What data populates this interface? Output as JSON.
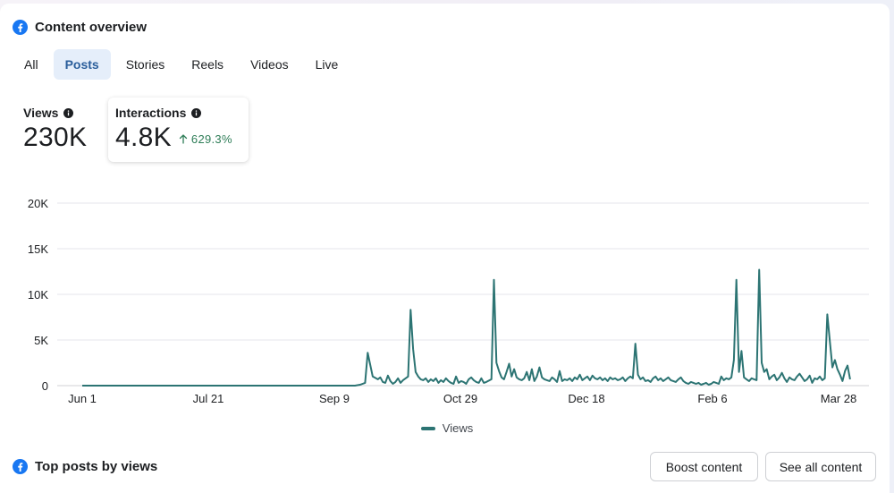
{
  "overview": {
    "title": "Content overview",
    "tabs": [
      {
        "label": "All",
        "active": false
      },
      {
        "label": "Posts",
        "active": true
      },
      {
        "label": "Stories",
        "active": false
      },
      {
        "label": "Reels",
        "active": false
      },
      {
        "label": "Videos",
        "active": false
      },
      {
        "label": "Live",
        "active": false
      }
    ],
    "metrics": {
      "views": {
        "label": "Views",
        "value": "230K"
      },
      "interactions": {
        "label": "Interactions",
        "value": "4.8K",
        "change": "629.3%",
        "change_direction": "up"
      }
    }
  },
  "chart_data": {
    "type": "line",
    "x_tick_labels": [
      "Jun 1",
      "Jul 21",
      "Sep 9",
      "Oct 29",
      "Dec 18",
      "Feb 6",
      "Mar 28"
    ],
    "y_tick_labels": [
      "0",
      "5K",
      "10K",
      "15K",
      "20K"
    ],
    "ylim": [
      0,
      20000
    ],
    "grid": true,
    "legend_position": "bottom",
    "series": [
      {
        "name": "Views",
        "color": "#2c7473",
        "x_range_days": [
          0,
          309
        ],
        "points": [
          [
            0,
            0
          ],
          [
            30,
            0
          ],
          [
            60,
            0
          ],
          [
            90,
            0
          ],
          [
            100,
            0
          ],
          [
            108,
            0
          ],
          [
            110,
            100
          ],
          [
            112,
            300
          ],
          [
            113,
            3600
          ],
          [
            115,
            1000
          ],
          [
            117,
            700
          ],
          [
            118,
            900
          ],
          [
            119,
            400
          ],
          [
            120,
            300
          ],
          [
            121,
            1100
          ],
          [
            122,
            500
          ],
          [
            123,
            200
          ],
          [
            124,
            400
          ],
          [
            125,
            800
          ],
          [
            126,
            300
          ],
          [
            127,
            600
          ],
          [
            129,
            1000
          ],
          [
            130,
            8300
          ],
          [
            131,
            4000
          ],
          [
            132,
            1500
          ],
          [
            133,
            1000
          ],
          [
            134,
            700
          ],
          [
            135,
            600
          ],
          [
            136,
            800
          ],
          [
            137,
            400
          ],
          [
            138,
            700
          ],
          [
            139,
            500
          ],
          [
            140,
            800
          ],
          [
            141,
            300
          ],
          [
            142,
            600
          ],
          [
            143,
            400
          ],
          [
            144,
            800
          ],
          [
            145,
            500
          ],
          [
            146,
            300
          ],
          [
            147,
            200
          ],
          [
            148,
            1000
          ],
          [
            149,
            300
          ],
          [
            150,
            500
          ],
          [
            151,
            400
          ],
          [
            152,
            200
          ],
          [
            153,
            700
          ],
          [
            154,
            900
          ],
          [
            155,
            600
          ],
          [
            156,
            400
          ],
          [
            157,
            300
          ],
          [
            158,
            800
          ],
          [
            159,
            300
          ],
          [
            160,
            400
          ],
          [
            162,
            700
          ],
          [
            163,
            11600
          ],
          [
            164,
            2500
          ],
          [
            165,
            1600
          ],
          [
            166,
            900
          ],
          [
            167,
            700
          ],
          [
            168,
            1500
          ],
          [
            169,
            2400
          ],
          [
            170,
            1000
          ],
          [
            171,
            1800
          ],
          [
            172,
            900
          ],
          [
            173,
            700
          ],
          [
            174,
            600
          ],
          [
            175,
            800
          ],
          [
            176,
            1500
          ],
          [
            177,
            600
          ],
          [
            178,
            1800
          ],
          [
            179,
            500
          ],
          [
            180,
            1000
          ],
          [
            181,
            2000
          ],
          [
            182,
            900
          ],
          [
            183,
            700
          ],
          [
            184,
            600
          ],
          [
            185,
            500
          ],
          [
            186,
            900
          ],
          [
            187,
            700
          ],
          [
            188,
            400
          ],
          [
            189,
            1600
          ],
          [
            190,
            500
          ],
          [
            191,
            700
          ],
          [
            192,
            600
          ],
          [
            193,
            800
          ],
          [
            194,
            500
          ],
          [
            195,
            900
          ],
          [
            196,
            700
          ],
          [
            197,
            1200
          ],
          [
            198,
            600
          ],
          [
            199,
            800
          ],
          [
            200,
            1000
          ],
          [
            201,
            600
          ],
          [
            202,
            1100
          ],
          [
            203,
            800
          ],
          [
            204,
            700
          ],
          [
            205,
            900
          ],
          [
            206,
            600
          ],
          [
            207,
            800
          ],
          [
            208,
            500
          ],
          [
            209,
            900
          ],
          [
            210,
            700
          ],
          [
            211,
            800
          ],
          [
            212,
            600
          ],
          [
            213,
            700
          ],
          [
            214,
            900
          ],
          [
            215,
            500
          ],
          [
            216,
            800
          ],
          [
            217,
            1000
          ],
          [
            218,
            800
          ],
          [
            219,
            4600
          ],
          [
            220,
            1200
          ],
          [
            221,
            700
          ],
          [
            222,
            900
          ],
          [
            223,
            500
          ],
          [
            224,
            600
          ],
          [
            225,
            400
          ],
          [
            226,
            800
          ],
          [
            227,
            1000
          ],
          [
            228,
            600
          ],
          [
            229,
            800
          ],
          [
            230,
            500
          ],
          [
            231,
            700
          ],
          [
            232,
            900
          ],
          [
            233,
            600
          ],
          [
            234,
            500
          ],
          [
            235,
            400
          ],
          [
            236,
            700
          ],
          [
            237,
            900
          ],
          [
            238,
            500
          ],
          [
            239,
            300
          ],
          [
            240,
            200
          ],
          [
            241,
            400
          ],
          [
            242,
            300
          ],
          [
            243,
            200
          ],
          [
            244,
            300
          ],
          [
            245,
            100
          ],
          [
            246,
            200
          ],
          [
            247,
            300
          ],
          [
            248,
            100
          ],
          [
            249,
            200
          ],
          [
            250,
            400
          ],
          [
            251,
            300
          ],
          [
            252,
            200
          ],
          [
            253,
            1000
          ],
          [
            254,
            600
          ],
          [
            255,
            800
          ],
          [
            256,
            700
          ],
          [
            257,
            900
          ],
          [
            258,
            2800
          ],
          [
            259,
            11600
          ],
          [
            260,
            1500
          ],
          [
            261,
            3800
          ],
          [
            262,
            900
          ],
          [
            263,
            700
          ],
          [
            264,
            500
          ],
          [
            265,
            800
          ],
          [
            266,
            700
          ],
          [
            267,
            600
          ],
          [
            268,
            12700
          ],
          [
            269,
            2500
          ],
          [
            270,
            1500
          ],
          [
            271,
            1800
          ],
          [
            272,
            700
          ],
          [
            273,
            1000
          ],
          [
            274,
            1200
          ],
          [
            275,
            600
          ],
          [
            276,
            900
          ],
          [
            277,
            1400
          ],
          [
            278,
            800
          ],
          [
            279,
            400
          ],
          [
            280,
            900
          ],
          [
            281,
            700
          ],
          [
            282,
            600
          ],
          [
            283,
            1000
          ],
          [
            284,
            1300
          ],
          [
            285,
            900
          ],
          [
            286,
            500
          ],
          [
            287,
            700
          ],
          [
            288,
            1100
          ],
          [
            289,
            300
          ],
          [
            290,
            800
          ],
          [
            291,
            700
          ],
          [
            292,
            1000
          ],
          [
            293,
            600
          ],
          [
            294,
            800
          ],
          [
            295,
            7800
          ],
          [
            296,
            4800
          ],
          [
            297,
            2000
          ],
          [
            298,
            2800
          ],
          [
            299,
            1800
          ],
          [
            300,
            1200
          ],
          [
            301,
            500
          ],
          [
            302,
            1600
          ],
          [
            303,
            2200
          ],
          [
            304,
            700
          ]
        ]
      }
    ]
  },
  "top_posts": {
    "title": "Top posts by views",
    "boost_label": "Boost content",
    "see_all_label": "See all content"
  },
  "icons": {
    "brand": "facebook-icon",
    "info": "info-icon",
    "up_arrow": "arrow-up-icon"
  },
  "colors": {
    "brand_blue": "#1877f2",
    "series": "#2c7473",
    "positive": "#2e7d57",
    "active_tab_bg": "#e5eefa",
    "active_tab_text": "#2a5e9b"
  }
}
